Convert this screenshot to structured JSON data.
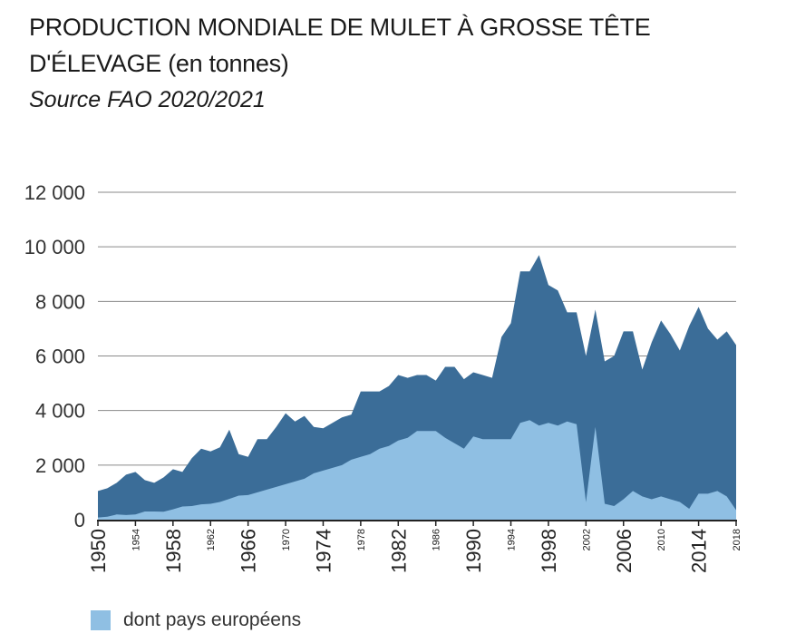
{
  "title": "PRODUCTION MONDIALE DE MULET À GROSSE TÊTE",
  "title_line2_main": "D'ÉLEVAGE",
  "title_line2_suffix": "(en tonnes)",
  "source": "Source FAO 2020/2021",
  "legend_label": "dont pays européens",
  "colors": {
    "total": "#3b6d98",
    "europe": "#8fbfe3",
    "grid": "#8a8a8a",
    "axis": "#222222"
  },
  "chart_data": {
    "type": "area",
    "ylim": [
      0,
      12000
    ],
    "yticks": [
      0,
      2000,
      4000,
      6000,
      8000,
      10000,
      12000
    ],
    "ytick_labels": [
      "0",
      "2 000",
      "4 000",
      "6 000",
      "8 000",
      "10 000",
      "12 000"
    ],
    "xlim": [
      1950,
      2018
    ],
    "xticks": [
      {
        "year": 1950,
        "label": "1950",
        "size": "large"
      },
      {
        "year": 1954,
        "label": "1954",
        "size": "small"
      },
      {
        "year": 1958,
        "label": "1958",
        "size": "large"
      },
      {
        "year": 1962,
        "label": "1962",
        "size": "small"
      },
      {
        "year": 1966,
        "label": "1966",
        "size": "large"
      },
      {
        "year": 1970,
        "label": "1970",
        "size": "small"
      },
      {
        "year": 1974,
        "label": "1974",
        "size": "large"
      },
      {
        "year": 1978,
        "label": "1978",
        "size": "small"
      },
      {
        "year": 1982,
        "label": "1982",
        "size": "large"
      },
      {
        "year": 1986,
        "label": "1986",
        "size": "small"
      },
      {
        "year": 1990,
        "label": "1990",
        "size": "large"
      },
      {
        "year": 1994,
        "label": "1994",
        "size": "small"
      },
      {
        "year": 1998,
        "label": "1998",
        "size": "large"
      },
      {
        "year": 2002,
        "label": "2002",
        "size": "small"
      },
      {
        "year": 2006,
        "label": "2006",
        "size": "large"
      },
      {
        "year": 2010,
        "label": "2010",
        "size": "small"
      },
      {
        "year": 2014,
        "label": "2014",
        "size": "large"
      },
      {
        "year": 2018,
        "label": "2018",
        "size": "small"
      }
    ],
    "x": [
      1950,
      1951,
      1952,
      1953,
      1954,
      1955,
      1956,
      1957,
      1958,
      1959,
      1960,
      1961,
      1962,
      1963,
      1964,
      1965,
      1966,
      1967,
      1968,
      1969,
      1970,
      1971,
      1972,
      1973,
      1974,
      1975,
      1976,
      1977,
      1978,
      1979,
      1980,
      1981,
      1982,
      1983,
      1984,
      1985,
      1986,
      1987,
      1988,
      1989,
      1990,
      1991,
      1992,
      1993,
      1994,
      1995,
      1996,
      1997,
      1998,
      1999,
      2000,
      2001,
      2002,
      2003,
      2004,
      2005,
      2006,
      2007,
      2008,
      2009,
      2010,
      2011,
      2012,
      2013,
      2014,
      2015,
      2016,
      2017,
      2018
    ],
    "series": [
      {
        "name": "",
        "values": [
          1050,
          1150,
          1350,
          1650,
          1750,
          1450,
          1350,
          1550,
          1850,
          1750,
          2250,
          2600,
          2500,
          2650,
          3300,
          2400,
          2300,
          2950,
          2950,
          3400,
          3900,
          3600,
          3800,
          3400,
          3350,
          3550,
          3750,
          3850,
          4700,
          4700,
          4700,
          4900,
          5300,
          5200,
          5300,
          5300,
          5100,
          5600,
          5600,
          5150,
          5400,
          5300,
          5200,
          6700,
          7200,
          9100,
          9100,
          9700,
          8600,
          8400,
          7600,
          7600,
          6000,
          7700,
          5800,
          6000,
          6900,
          6900,
          5500,
          6500,
          7300,
          6800,
          6200,
          7100,
          7800,
          7000,
          6600,
          6900,
          6400
        ]
      },
      {
        "name": "dont pays européens",
        "values": [
          80,
          110,
          190,
          170,
          190,
          300,
          300,
          290,
          380,
          480,
          500,
          560,
          580,
          650,
          760,
          880,
          900,
          1000,
          1100,
          1200,
          1300,
          1400,
          1500,
          1700,
          1800,
          1900,
          2000,
          2200,
          2300,
          2400,
          2600,
          2700,
          2900,
          3000,
          3250,
          3250,
          3250,
          3000,
          2800,
          2600,
          3050,
          2950,
          2950,
          2950,
          2950,
          3550,
          3650,
          3450,
          3550,
          3450,
          3600,
          3500,
          640,
          3400,
          580,
          500,
          750,
          1050,
          850,
          750,
          850,
          750,
          650,
          400,
          950,
          950,
          1050,
          850,
          350
        ]
      }
    ]
  }
}
